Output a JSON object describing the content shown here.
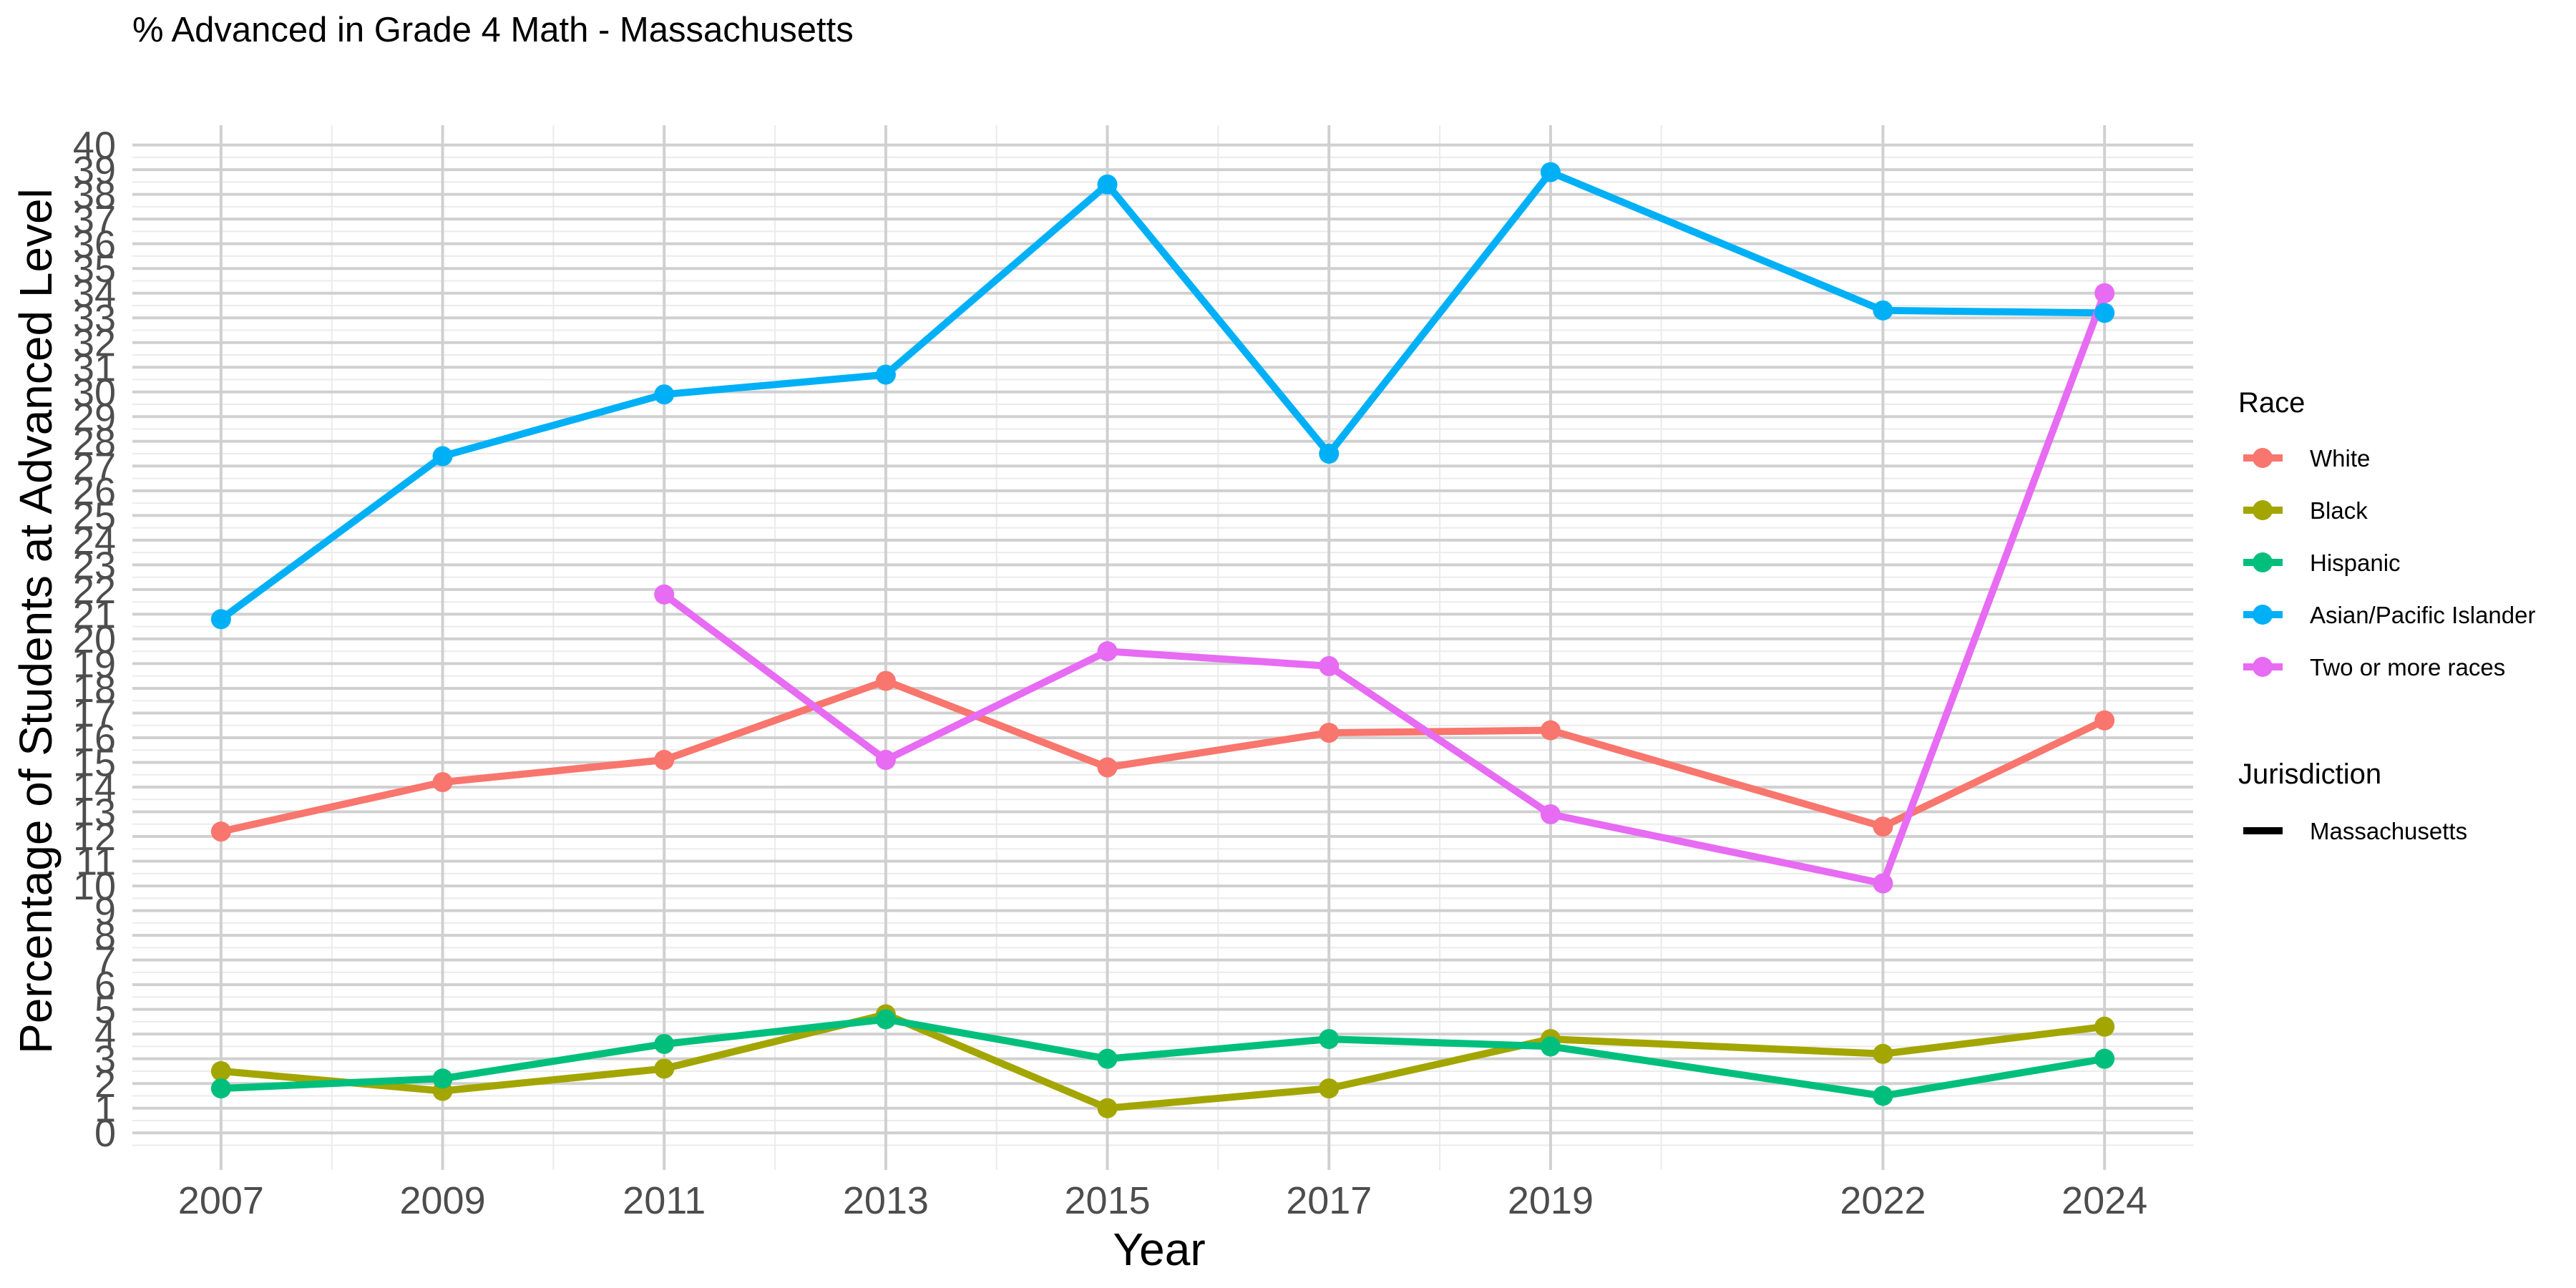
{
  "chart_data": {
    "type": "line",
    "title": "% Advanced in Grade 4 Math - Massachusetts",
    "xlabel": "Year",
    "ylabel": "Percentage of Students at Advanced Level",
    "x": [
      2007,
      2009,
      2011,
      2013,
      2015,
      2017,
      2019,
      2022,
      2024
    ],
    "x_tick_labels": [
      "2007",
      "2009",
      "2011",
      "2013",
      "2015",
      "2017",
      "2019",
      "2022",
      "2024"
    ],
    "y_tick_labels": [
      "0",
      "1",
      "2",
      "3",
      "4",
      "5",
      "6",
      "7",
      "8",
      "9",
      "10",
      "11",
      "12",
      "13",
      "14",
      "15",
      "16",
      "17",
      "18",
      "19",
      "20",
      "21",
      "22",
      "23",
      "24",
      "25",
      "26",
      "27",
      "28",
      "29",
      "30",
      "31",
      "32",
      "33",
      "34",
      "35",
      "36",
      "37",
      "38",
      "39",
      "40"
    ],
    "xlim": [
      2006.2,
      2024.8
    ],
    "ylim": [
      -1.5,
      40.8
    ],
    "grid": true,
    "legend_position": "right",
    "series": [
      {
        "name": "White",
        "color": "#F8766D",
        "values": [
          12.2,
          14.2,
          15.1,
          18.3,
          14.8,
          16.2,
          16.3,
          12.4,
          16.7
        ]
      },
      {
        "name": "Black",
        "color": "#A3A500",
        "values": [
          2.5,
          1.7,
          2.6,
          4.8,
          1.0,
          1.8,
          3.8,
          3.2,
          4.3
        ]
      },
      {
        "name": "Hispanic",
        "color": "#00BF7D",
        "values": [
          1.8,
          2.2,
          3.6,
          4.6,
          3.0,
          3.8,
          3.5,
          1.5,
          3.0
        ]
      },
      {
        "name": "Asian/Pacific Islander",
        "color": "#00B0F6",
        "values": [
          20.8,
          27.4,
          29.9,
          30.7,
          38.4,
          27.5,
          38.9,
          33.3,
          33.2
        ]
      },
      {
        "name": "Two or more races",
        "color": "#E76BF3",
        "values": [
          null,
          null,
          21.8,
          15.1,
          19.5,
          18.9,
          12.9,
          10.1,
          34.0
        ]
      }
    ],
    "legend": {
      "race_title": "Race",
      "jurisdiction_title": "Jurisdiction",
      "jurisdiction_items": [
        {
          "label": "Massachusetts",
          "color": "#000000"
        }
      ]
    }
  }
}
